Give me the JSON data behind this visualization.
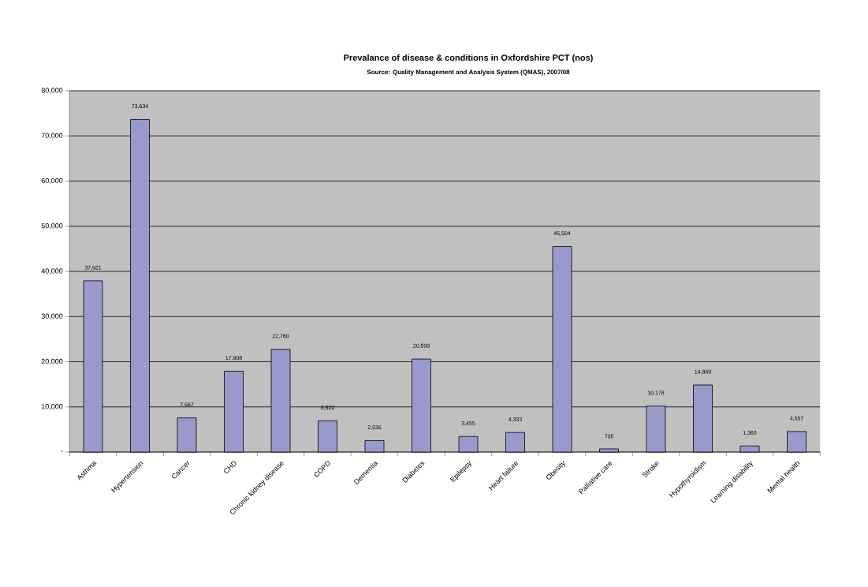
{
  "chart_data": {
    "type": "bar",
    "title": "Prevalance of disease & conditions in Oxfordshire PCT (nos)",
    "subtitle": "Source: Quality Management and Analysis System (QMAS), 2007/08",
    "categories": [
      "Asthma",
      "Hypertension",
      "Cancer",
      "CHD",
      "Chronic kidney disease",
      "COPD",
      "Dementia",
      "Diabetes",
      "Epilepsy",
      "Heart failure",
      "Obesity",
      "Palliative care",
      "Stroke",
      "Hypothyroidism",
      "Learning disability",
      "Mental health"
    ],
    "values": [
      37921,
      73634,
      7567,
      17908,
      22760,
      6920,
      2536,
      20598,
      3455,
      4333,
      45504,
      705,
      10178,
      14849,
      1363,
      4557
    ],
    "value_labels": [
      "37,921",
      "73,634",
      "7,567",
      "17,908",
      "22,760",
      "6,920",
      "2,536",
      "20,598",
      "3,455",
      "4,333",
      "45,504",
      "705",
      "10,178",
      "14,849",
      "1,363",
      "4,557"
    ],
    "color": "#9999cc",
    "ylim": [
      0,
      80000
    ],
    "yticks": [
      {
        "value": 0,
        "label": "-"
      },
      {
        "value": 10000,
        "label": "10,000"
      },
      {
        "value": 20000,
        "label": "20,000"
      },
      {
        "value": 30000,
        "label": "30,000"
      },
      {
        "value": 40000,
        "label": "40,000"
      },
      {
        "value": 50000,
        "label": "50,000"
      },
      {
        "value": 60000,
        "label": "60,000"
      },
      {
        "value": 70000,
        "label": "70,000"
      },
      {
        "value": 80000,
        "label": "80,000"
      }
    ],
    "grid": "y"
  }
}
